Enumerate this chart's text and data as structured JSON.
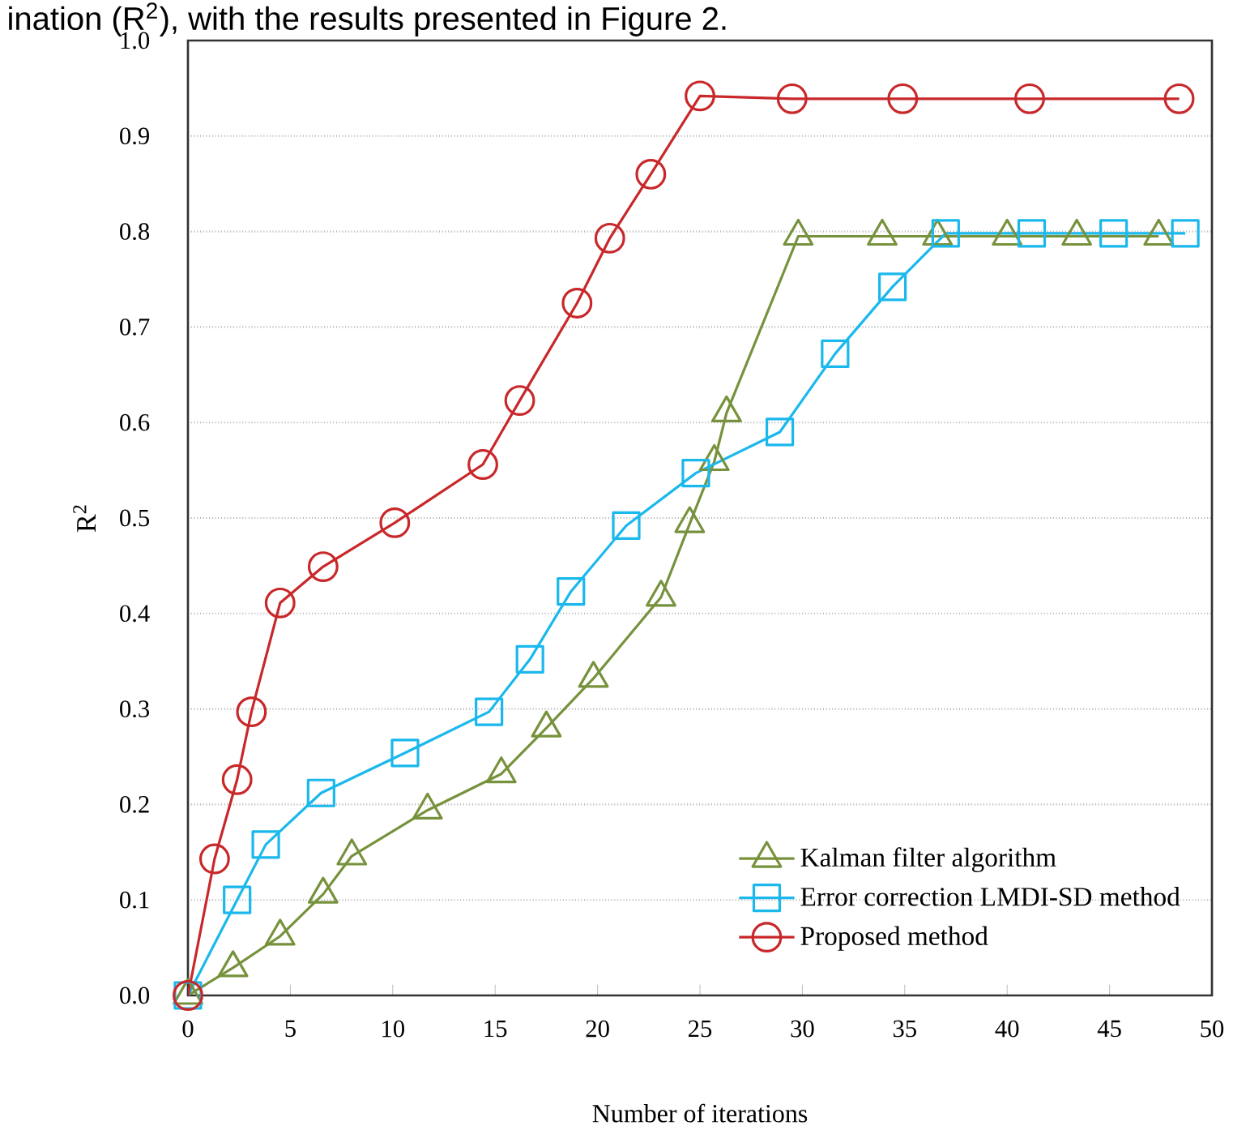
{
  "chart_data": {
    "type": "line",
    "xlabel": "Number of iterations",
    "ylabel": "R$^{2}$",
    "annotations": [
      "ination (R$^{2}$), with the results presented in Figure 2."
    ],
    "xlim": [
      0,
      50
    ],
    "ylim": [
      0,
      1
    ],
    "xticks": [
      0,
      5,
      10,
      15,
      20,
      25,
      30,
      35,
      40,
      45,
      50
    ],
    "yticks": [
      {
        "value": 0,
        "label": "0.0"
      },
      {
        "value": 0.1,
        "label": "0.1"
      },
      {
        "value": 0.2,
        "label": "0.2"
      },
      {
        "value": 0.3,
        "label": "0.3"
      },
      {
        "value": 0.4,
        "label": "0.4"
      },
      {
        "value": 0.5,
        "label": "0.5"
      },
      {
        "value": 0.6,
        "label": "0.6"
      },
      {
        "value": 0.7,
        "label": "0.7"
      },
      {
        "value": 0.8,
        "label": "0.8"
      },
      {
        "value": 0.9,
        "label": "0.9"
      },
      {
        "value": 1,
        "label": "1.0"
      }
    ],
    "grid": "y",
    "legend": "bottom right",
    "line_style": "solid",
    "series": [
      {
        "name": "Kalman filter algorithm",
        "color": "#77923c",
        "marker": "triangle",
        "x": [
          0,
          2.2,
          4.5,
          6.6,
          8.0,
          11.7,
          15.3,
          17.5,
          19.8,
          23.1,
          24.5,
          25.7,
          26.3,
          29.8,
          33.9,
          36.6,
          40.0,
          43.4,
          47.4
        ],
        "values": [
          0,
          0.029,
          0.062,
          0.106,
          0.146,
          0.194,
          0.232,
          0.28,
          0.332,
          0.417,
          0.494,
          0.559,
          0.61,
          0.795,
          0.795,
          0.795,
          0.795,
          0.795,
          0.795
        ]
      },
      {
        "name": "Error correction LMDI-SD method",
        "color": "#1ab8ec",
        "marker": "square",
        "x": [
          0,
          2.4,
          3.8,
          6.5,
          10.6,
          14.7,
          16.7,
          18.7,
          21.4,
          24.8,
          28.9,
          31.6,
          34.4,
          37.0,
          41.2,
          45.2,
          48.7
        ],
        "values": [
          0,
          0.1,
          0.158,
          0.212,
          0.254,
          0.297,
          0.352,
          0.423,
          0.492,
          0.547,
          0.59,
          0.672,
          0.742,
          0.798,
          0.798,
          0.798,
          0.798
        ]
      },
      {
        "name": "Proposed method",
        "color": "#c8282a",
        "marker": "circle",
        "x": [
          0,
          1.3,
          2.4,
          3.1,
          4.5,
          6.6,
          10.1,
          14.4,
          16.2,
          19.0,
          20.6,
          22.6,
          25.0,
          29.5,
          34.9,
          41.1,
          48.4
        ],
        "values": [
          0,
          0.143,
          0.226,
          0.297,
          0.411,
          0.449,
          0.495,
          0.556,
          0.623,
          0.725,
          0.793,
          0.86,
          0.942,
          0.939,
          0.939,
          0.939,
          0.939
        ]
      }
    ]
  }
}
